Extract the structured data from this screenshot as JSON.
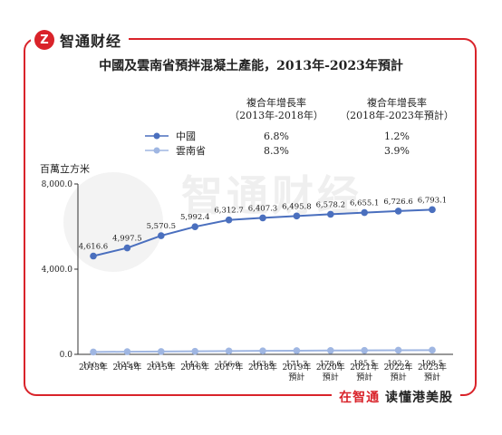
{
  "brand": {
    "name": "智通财经",
    "logo_icon": "zhitong-logo-icon",
    "color": "#d9232a"
  },
  "slogan": {
    "part1": "在智通",
    "part2": "读懂港美股"
  },
  "chart_data": {
    "type": "line",
    "title": "中國及雲南省預拌混凝土產能，2013年-2023年預計",
    "ylabel": "百萬立方米",
    "ylim": [
      0,
      8000
    ],
    "yticks": [
      "0.0",
      "4,000.0",
      "8,000.0"
    ],
    "categories": [
      [
        "2013年"
      ],
      [
        "2014年"
      ],
      [
        "2015年"
      ],
      [
        "2016年"
      ],
      [
        "2017年"
      ],
      [
        "2018年"
      ],
      [
        "2019年",
        "預計"
      ],
      [
        "2020年",
        "預計"
      ],
      [
        "2021年",
        "預計"
      ],
      [
        "2022年",
        "預計"
      ],
      [
        "2023年",
        "預計"
      ]
    ],
    "cagr_headers": [
      {
        "line1": "複合年增長率",
        "line2": "（2013年-2018年）"
      },
      {
        "line1": "複合年增長率",
        "line2": "（2018年-2023年預計）"
      }
    ],
    "series": [
      {
        "name": "中國",
        "color": "#4a6fbe",
        "values": [
          4616.6,
          4997.5,
          5570.5,
          5992.4,
          6312.7,
          6407.3,
          6495.8,
          6578.2,
          6655.1,
          6726.6,
          6793.1
        ],
        "labels": [
          "4,616.6",
          "4,997.5",
          "5,570.5",
          "5,992.4",
          "6,312.7",
          "6,407.3",
          "6,495.8",
          "6,578.2",
          "6,655.1",
          "6,726.6",
          "6,793.1"
        ],
        "cagr": [
          "6.8%",
          "1.2%"
        ]
      },
      {
        "name": "雲南省",
        "color": "#9fb6e2",
        "values": [
          110.0,
          125.0,
          131.0,
          142.0,
          156.0,
          163.8,
          171.3,
          178.6,
          185.5,
          192.2,
          198.5
        ],
        "labels": [
          "110.0",
          "125.0",
          "131.0",
          "142.0",
          "156.0",
          "163.8",
          "171.3",
          "178.6",
          "185.5",
          "192.2",
          "198.5"
        ],
        "cagr": [
          "8.3%",
          "3.9%"
        ]
      }
    ],
    "grid": false,
    "legend": "top-left"
  }
}
